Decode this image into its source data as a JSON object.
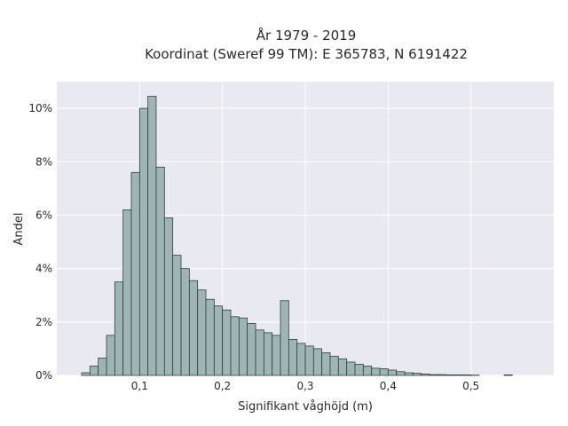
{
  "chart_data": {
    "type": "bar",
    "title": "År 1979 - 2019",
    "subtitle": "Koordinat (Sweref 99 TM): E 365783, N 6191422",
    "xlabel": "Signifikant våghöjd (m)",
    "ylabel": "Andel",
    "xlim": [
      0.0,
      0.6
    ],
    "ylim": [
      0,
      11
    ],
    "x_ticks": [
      0.1,
      0.2,
      0.3,
      0.4,
      0.5
    ],
    "x_tick_labels": [
      "0,1",
      "0,2",
      "0,3",
      "0,4",
      "0,5"
    ],
    "y_ticks": [
      0,
      2,
      4,
      6,
      8,
      10
    ],
    "y_tick_labels": [
      "0%",
      "2%",
      "4%",
      "6%",
      "8%",
      "10%"
    ],
    "bin_width": 0.01,
    "bins_start": [
      0.03,
      0.04,
      0.05,
      0.06,
      0.07,
      0.08,
      0.09,
      0.1,
      0.11,
      0.12,
      0.13,
      0.14,
      0.15,
      0.16,
      0.17,
      0.18,
      0.19,
      0.2,
      0.21,
      0.22,
      0.23,
      0.24,
      0.25,
      0.26,
      0.27,
      0.28,
      0.29,
      0.3,
      0.31,
      0.32,
      0.33,
      0.34,
      0.35,
      0.36,
      0.37,
      0.38,
      0.39,
      0.4,
      0.41,
      0.42,
      0.43,
      0.44,
      0.45,
      0.46,
      0.47,
      0.48,
      0.49,
      0.5,
      0.51,
      0.52,
      0.53,
      0.54
    ],
    "values": [
      0.1,
      0.35,
      0.65,
      1.5,
      3.5,
      6.2,
      7.6,
      10.0,
      10.45,
      7.8,
      5.9,
      4.5,
      4.0,
      3.55,
      3.2,
      2.85,
      2.6,
      2.45,
      2.2,
      2.15,
      1.95,
      1.7,
      1.6,
      1.5,
      2.8,
      1.35,
      1.2,
      1.1,
      1.0,
      0.85,
      0.72,
      0.62,
      0.5,
      0.42,
      0.35,
      0.27,
      0.25,
      0.2,
      0.14,
      0.1,
      0.08,
      0.05,
      0.03,
      0.03,
      0.02,
      0.02,
      0.02,
      0.01,
      0.0,
      0.0,
      0.0,
      0.02
    ],
    "bar_color": "#9fb5b5",
    "bar_edge_color": "#2f3f3f",
    "plot_background": "#e9e9f1",
    "grid": true,
    "grid_color": "#ffffff"
  }
}
